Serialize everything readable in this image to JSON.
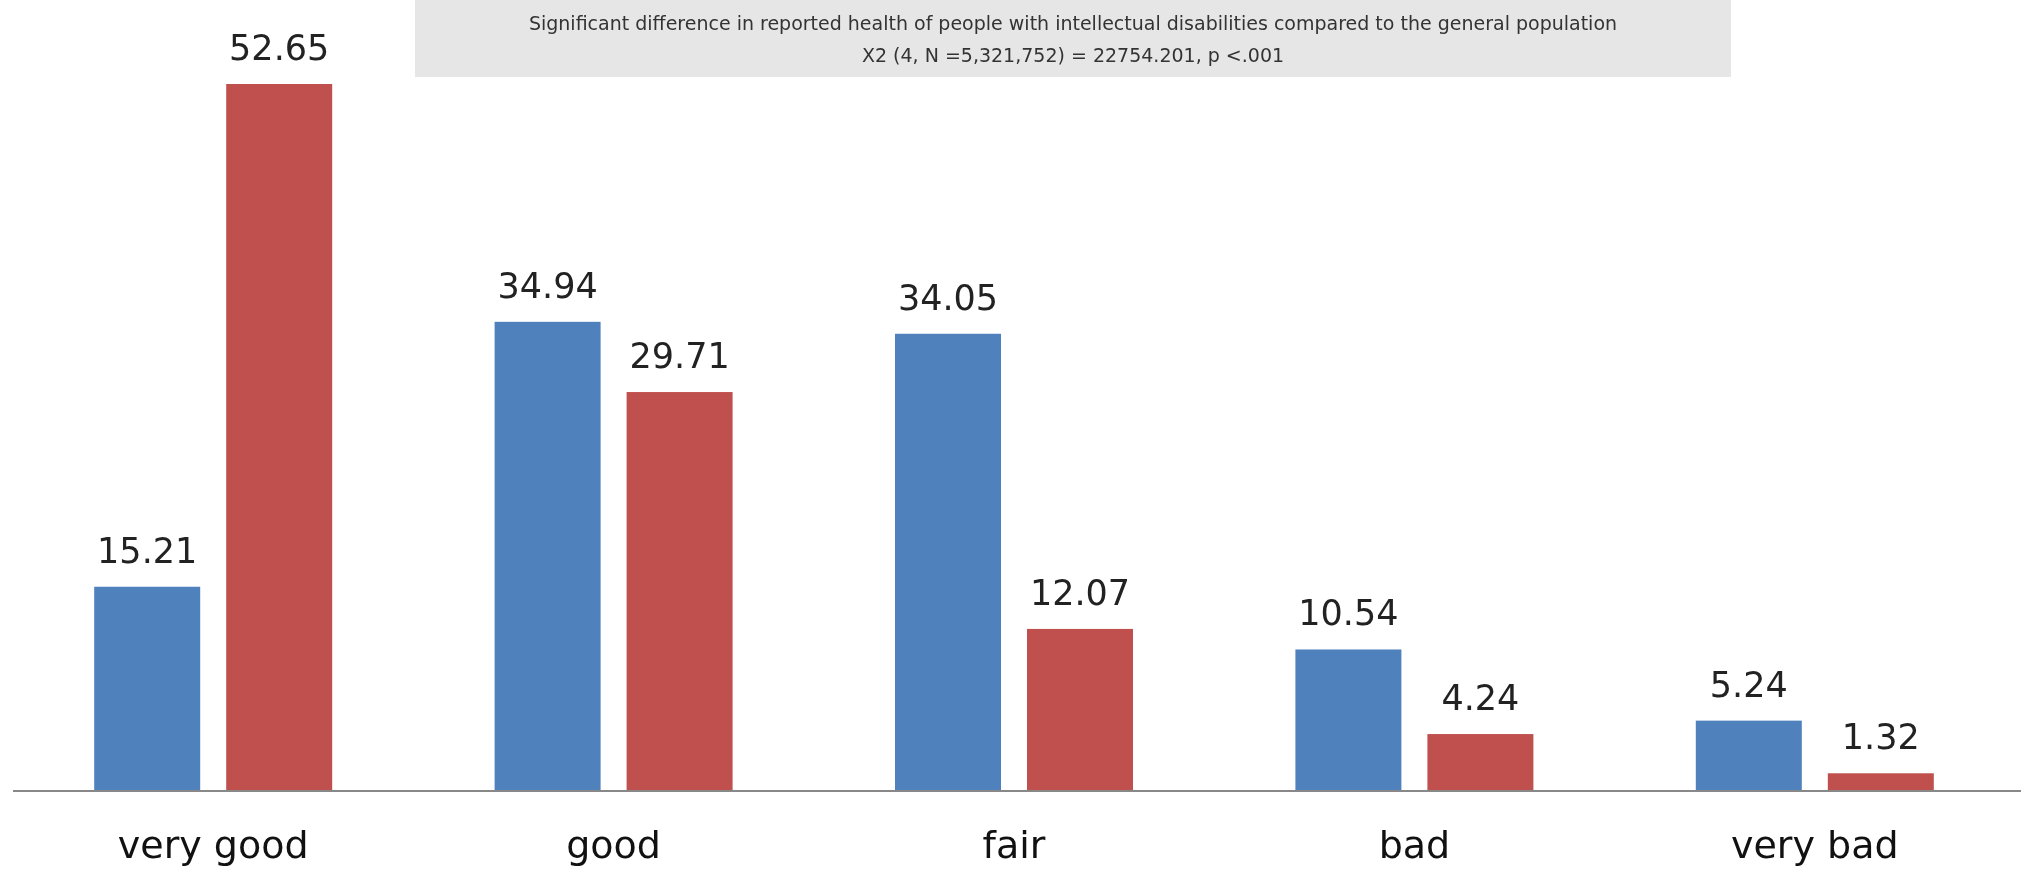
{
  "chart_data": {
    "type": "bar",
    "title": "Significant difference in reported health of people with intellectual disabilities compared to the general population",
    "subtitle": "X2 (4, N =5,321,752) = 22754.201, p <.001",
    "categories": [
      "very good",
      "good",
      "fair",
      "bad",
      "very bad"
    ],
    "series": [
      {
        "color": "#4f81bd",
        "values": [
          15.21,
          34.94,
          34.05,
          10.54,
          5.24
        ]
      },
      {
        "color": "#c0504d",
        "values": [
          52.65,
          29.71,
          12.07,
          4.24,
          1.32
        ]
      }
    ],
    "data_labels": true
  }
}
